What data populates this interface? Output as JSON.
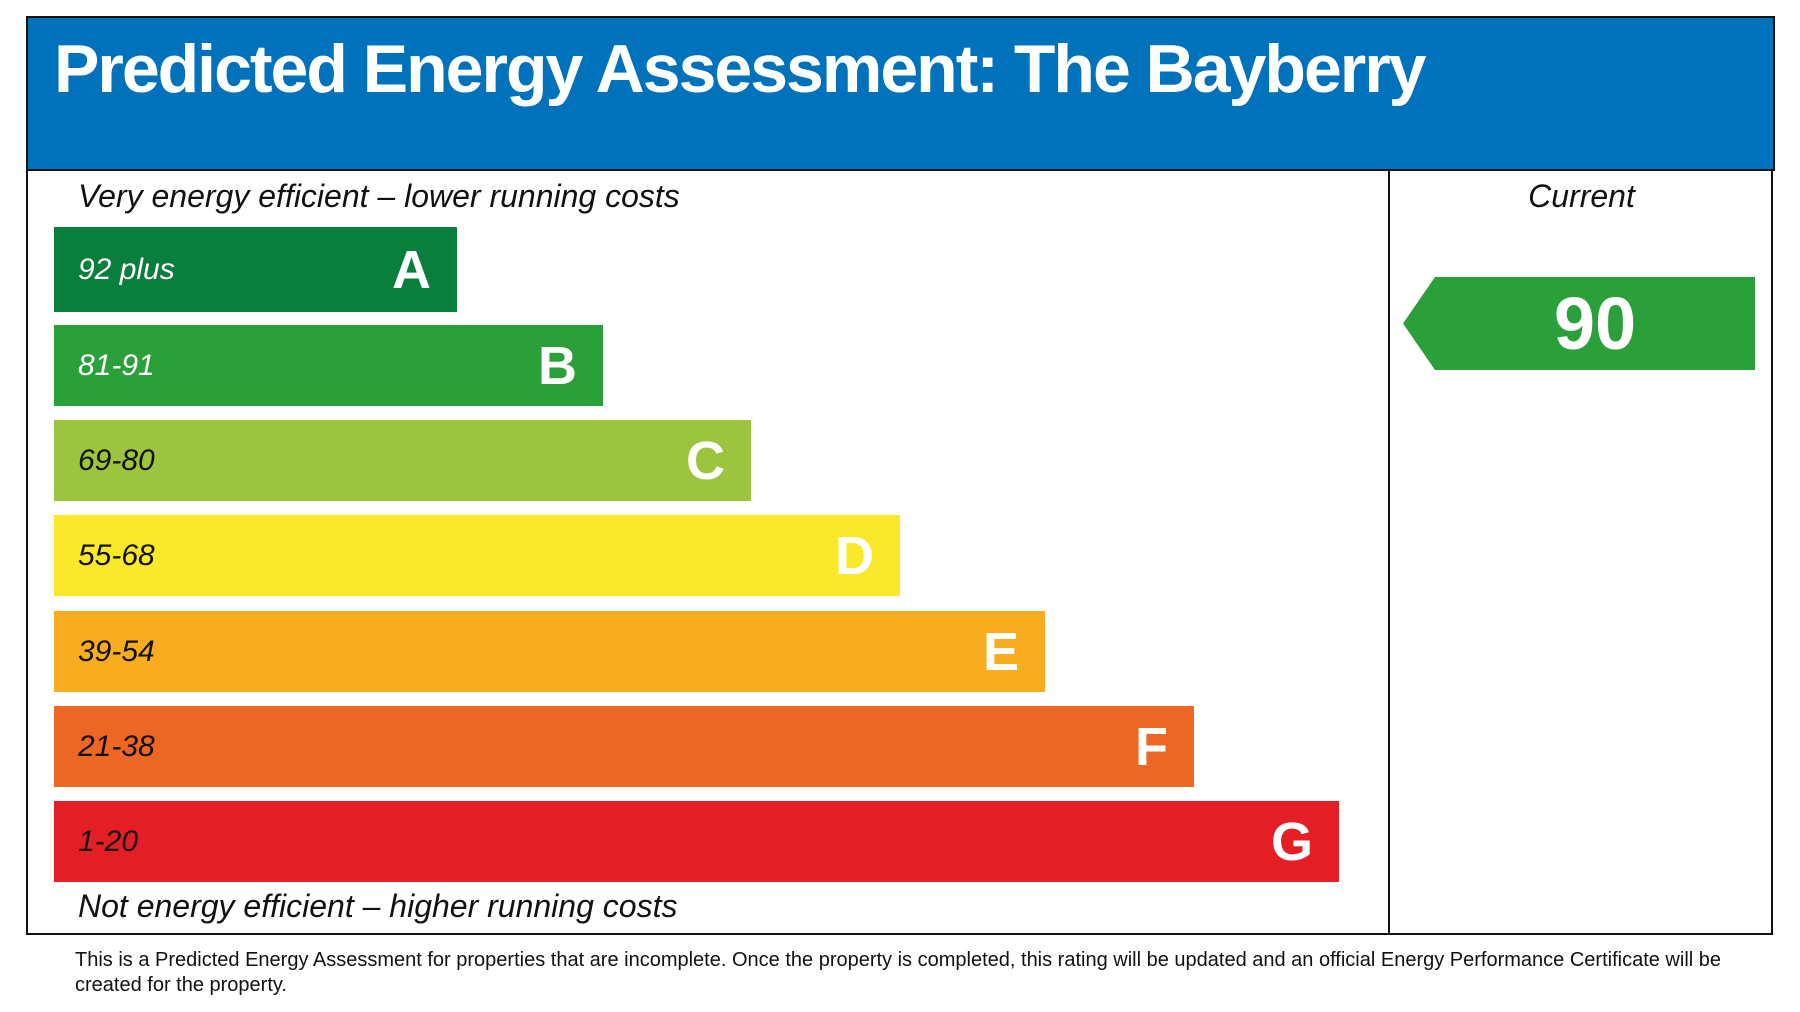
{
  "title": "Predicted Energy Assessment: The Bayberry",
  "top_note": "Very energy efficient – lower running costs",
  "bottom_note": "Not energy efficient – higher running costs",
  "current_label": "Current",
  "footer": "This is a Predicted Energy Assessment for properties that are incomplete. Once the property is completed, this rating will be updated and an official Energy Performance Certificate will be created for the property.",
  "colors": {
    "header": "#0072bc"
  },
  "chart_data": {
    "type": "bar",
    "orientation": "horizontal",
    "bands": [
      {
        "range": "92 plus",
        "letter": "A",
        "color": "#0a7f3d",
        "text_color": "#ffffff"
      },
      {
        "range": "81-91",
        "letter": "B",
        "color": "#2ba03a",
        "text_color": "#ffffff"
      },
      {
        "range": "69-80",
        "letter": "C",
        "color": "#9dc43e",
        "text_color": "#111111"
      },
      {
        "range": "55-68",
        "letter": "D",
        "color": "#f9e92a",
        "text_color": "#111111"
      },
      {
        "range": "39-54",
        "letter": "E",
        "color": "#f8ad21",
        "text_color": "#111111"
      },
      {
        "range": "21-38",
        "letter": "F",
        "color": "#ec6724",
        "text_color": "#111111"
      },
      {
        "range": "1-20",
        "letter": "G",
        "color": "#e31e24",
        "text_color": "#111111"
      }
    ],
    "current": {
      "value": 90,
      "band": "B",
      "color": "#2ba03a"
    }
  }
}
